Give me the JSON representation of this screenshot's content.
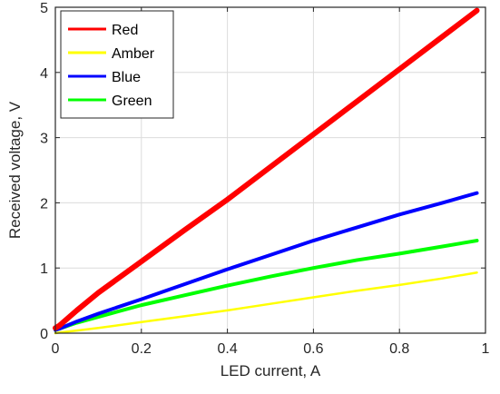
{
  "chart_data": {
    "type": "line",
    "title": "",
    "xlabel": "LED current, A",
    "ylabel": "Received voltage, V",
    "xlim": [
      0,
      1
    ],
    "ylim": [
      0,
      5
    ],
    "xticks": [
      "0",
      "0.2",
      "0.4",
      "0.6",
      "0.8",
      "1"
    ],
    "yticks": [
      "0",
      "1",
      "2",
      "3",
      "4",
      "5"
    ],
    "grid": true,
    "legend_position": "top-left",
    "x": [
      0,
      0.01,
      0.05,
      0.1,
      0.2,
      0.3,
      0.4,
      0.5,
      0.6,
      0.7,
      0.8,
      0.9,
      0.98
    ],
    "series": [
      {
        "name": "Red",
        "color": "#ff0000",
        "values": [
          0.08,
          0.12,
          0.35,
          0.62,
          1.1,
          1.58,
          2.05,
          2.55,
          3.05,
          3.55,
          4.05,
          4.55,
          4.95
        ]
      },
      {
        "name": "Amber",
        "color": "#ffff00",
        "values": [
          0.0,
          0.01,
          0.04,
          0.08,
          0.17,
          0.26,
          0.35,
          0.45,
          0.55,
          0.65,
          0.74,
          0.84,
          0.93
        ]
      },
      {
        "name": "Blue",
        "color": "#0000ff",
        "values": [
          0.05,
          0.07,
          0.18,
          0.3,
          0.52,
          0.75,
          0.98,
          1.2,
          1.42,
          1.62,
          1.82,
          2.0,
          2.15
        ]
      },
      {
        "name": "Green",
        "color": "#00ff00",
        "values": [
          0.05,
          0.07,
          0.16,
          0.25,
          0.43,
          0.58,
          0.73,
          0.87,
          1.0,
          1.12,
          1.22,
          1.33,
          1.42
        ]
      }
    ]
  }
}
